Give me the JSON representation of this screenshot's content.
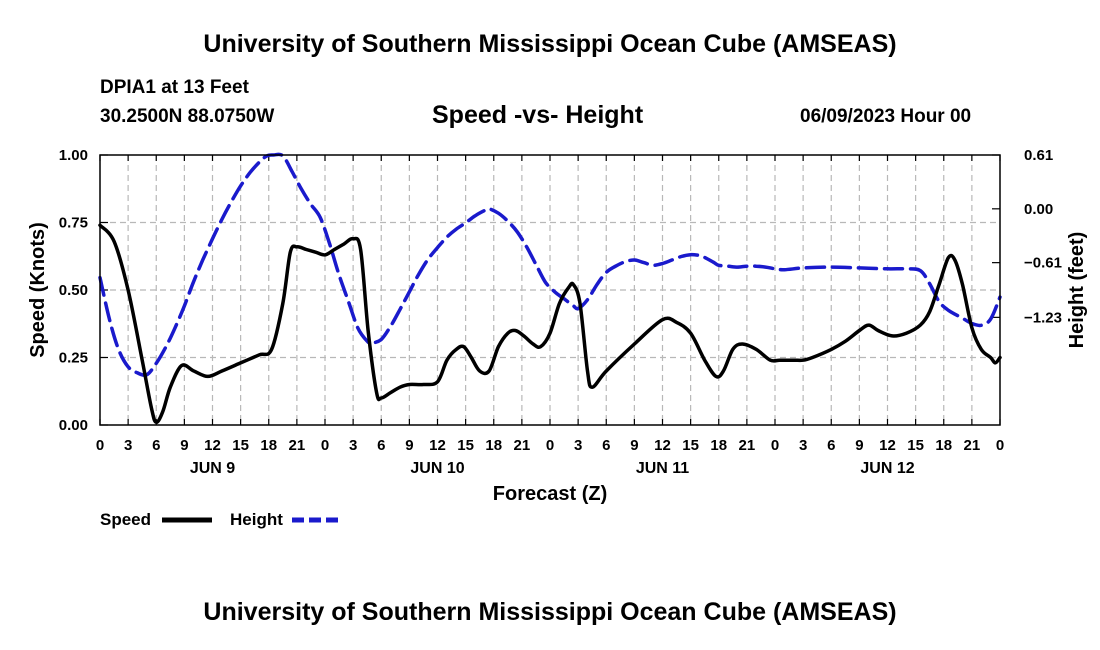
{
  "header": {
    "title": "University of Southern Mississippi Ocean Cube (AMSEAS)",
    "station": "DPIA1 at 13 Feet",
    "coordinates": "30.2500N  88.0750W",
    "subtitle": "Speed -vs- Height",
    "datetime": "06/09/2023 Hour 00"
  },
  "footer": {
    "title": "University of Southern Mississippi Ocean Cube (AMSEAS)"
  },
  "chart_data": {
    "type": "line",
    "title": "Speed -vs- Height",
    "xlabel": "Forecast (Z)",
    "ylabel_left": "Speed (Knots)",
    "ylabel_right": "Height (feet)",
    "x_range_hours": [
      0,
      96
    ],
    "ylim_left": [
      0,
      1.0
    ],
    "ylim_right": [
      -2.45,
      0.61
    ],
    "left_ticks": [
      "0.00",
      "0.25",
      "0.50",
      "0.75",
      "1.00"
    ],
    "left_tick_values": [
      0,
      0.25,
      0.5,
      0.75,
      1.0
    ],
    "right_ticks": [
      "0.61",
      "0.00",
      "−0.61",
      "−1.23"
    ],
    "right_tick_values": [
      0.61,
      0.0,
      -0.61,
      -1.23
    ],
    "x_tick_hours": [
      0,
      3,
      6,
      9,
      12,
      15,
      18,
      21,
      24,
      27,
      30,
      33,
      36,
      39,
      42,
      45,
      48,
      51,
      54,
      57,
      60,
      63,
      66,
      69,
      72,
      75,
      78,
      81,
      84,
      87,
      90,
      93,
      96
    ],
    "x_tick_labels": [
      "0",
      "3",
      "6",
      "9",
      "12",
      "15",
      "18",
      "21",
      "0",
      "3",
      "6",
      "9",
      "12",
      "15",
      "18",
      "21",
      "0",
      "3",
      "6",
      "9",
      "12",
      "15",
      "18",
      "21",
      "0",
      "3",
      "6",
      "9",
      "12",
      "15",
      "18",
      "21",
      "0"
    ],
    "day_labels": [
      {
        "label": "JUN 9",
        "hour": 12
      },
      {
        "label": "JUN 10",
        "hour": 36
      },
      {
        "label": "JUN 11",
        "hour": 60
      },
      {
        "label": "JUN 12",
        "hour": 84
      }
    ],
    "grid": true,
    "series": [
      {
        "name": "Speed",
        "axis": "left",
        "color": "#000000",
        "style": "solid",
        "points": [
          [
            0,
            0.74
          ],
          [
            1.5,
            0.68
          ],
          [
            3,
            0.5
          ],
          [
            4.5,
            0.24
          ],
          [
            5.5,
            0.06
          ],
          [
            6,
            0.01
          ],
          [
            6.7,
            0.05
          ],
          [
            7.5,
            0.14
          ],
          [
            8.7,
            0.22
          ],
          [
            10,
            0.2
          ],
          [
            11.5,
            0.18
          ],
          [
            13,
            0.2
          ],
          [
            15,
            0.23
          ],
          [
            17,
            0.26
          ],
          [
            18.3,
            0.28
          ],
          [
            19.5,
            0.45
          ],
          [
            20.3,
            0.64
          ],
          [
            21,
            0.66
          ],
          [
            22,
            0.65
          ],
          [
            23,
            0.64
          ],
          [
            24,
            0.63
          ],
          [
            25,
            0.65
          ],
          [
            26,
            0.67
          ],
          [
            27,
            0.69
          ],
          [
            27.8,
            0.65
          ],
          [
            28.6,
            0.35
          ],
          [
            29.5,
            0.12
          ],
          [
            30,
            0.1
          ],
          [
            31,
            0.12
          ],
          [
            32,
            0.14
          ],
          [
            33,
            0.15
          ],
          [
            34.5,
            0.15
          ],
          [
            36,
            0.16
          ],
          [
            37,
            0.24
          ],
          [
            38,
            0.28
          ],
          [
            38.8,
            0.29
          ],
          [
            39.6,
            0.25
          ],
          [
            40.5,
            0.2
          ],
          [
            41.5,
            0.2
          ],
          [
            42.5,
            0.29
          ],
          [
            43.5,
            0.34
          ],
          [
            44.3,
            0.35
          ],
          [
            45.2,
            0.33
          ],
          [
            46.2,
            0.3
          ],
          [
            47,
            0.29
          ],
          [
            48,
            0.34
          ],
          [
            49,
            0.45
          ],
          [
            50,
            0.51
          ],
          [
            50.5,
            0.52
          ],
          [
            51.2,
            0.45
          ],
          [
            52,
            0.2
          ],
          [
            52.5,
            0.14
          ],
          [
            54,
            0.2
          ],
          [
            57,
            0.3
          ],
          [
            60,
            0.39
          ],
          [
            61.5,
            0.38
          ],
          [
            63,
            0.34
          ],
          [
            64.5,
            0.24
          ],
          [
            65.7,
            0.18
          ],
          [
            66.5,
            0.2
          ],
          [
            67.5,
            0.28
          ],
          [
            68.5,
            0.3
          ],
          [
            70,
            0.28
          ],
          [
            71.5,
            0.24
          ],
          [
            72.5,
            0.24
          ],
          [
            74,
            0.24
          ],
          [
            75,
            0.24
          ],
          [
            76,
            0.25
          ],
          [
            78,
            0.28
          ],
          [
            79.5,
            0.31
          ],
          [
            81,
            0.35
          ],
          [
            82,
            0.37
          ],
          [
            83,
            0.35
          ],
          [
            84.5,
            0.33
          ],
          [
            86,
            0.34
          ],
          [
            87.5,
            0.37
          ],
          [
            88.5,
            0.42
          ],
          [
            89.5,
            0.52
          ],
          [
            90.5,
            0.62
          ],
          [
            91.2,
            0.61
          ],
          [
            92,
            0.52
          ],
          [
            93,
            0.36
          ],
          [
            94,
            0.28
          ],
          [
            95,
            0.25
          ],
          [
            95.5,
            0.23
          ],
          [
            96,
            0.25
          ]
        ]
      },
      {
        "name": "Height",
        "axis": "right",
        "color": "#1a1acc",
        "style": "dashed",
        "points": [
          [
            0,
            -0.78
          ],
          [
            1,
            -1.25
          ],
          [
            2,
            -1.6
          ],
          [
            3,
            -1.79
          ],
          [
            4,
            -1.86
          ],
          [
            5,
            -1.88
          ],
          [
            6,
            -1.75
          ],
          [
            7,
            -1.57
          ],
          [
            8,
            -1.35
          ],
          [
            9,
            -1.1
          ],
          [
            10,
            -0.82
          ],
          [
            11,
            -0.57
          ],
          [
            12,
            -0.34
          ],
          [
            13,
            -0.12
          ],
          [
            14,
            0.08
          ],
          [
            15,
            0.26
          ],
          [
            16,
            0.41
          ],
          [
            17,
            0.53
          ],
          [
            17.8,
            0.6
          ],
          [
            18.5,
            0.63
          ],
          [
            19.5,
            0.6
          ],
          [
            20.5,
            0.42
          ],
          [
            21.5,
            0.22
          ],
          [
            22.5,
            0.05
          ],
          [
            23.5,
            -0.1
          ],
          [
            24.5,
            -0.4
          ],
          [
            25.5,
            -0.75
          ],
          [
            26.5,
            -1.05
          ],
          [
            27.5,
            -1.35
          ],
          [
            28.5,
            -1.5
          ],
          [
            29,
            -1.52
          ],
          [
            30,
            -1.48
          ],
          [
            31,
            -1.33
          ],
          [
            32,
            -1.14
          ],
          [
            33,
            -0.94
          ],
          [
            34,
            -0.74
          ],
          [
            35,
            -0.57
          ],
          [
            36,
            -0.44
          ],
          [
            37,
            -0.32
          ],
          [
            38,
            -0.23
          ],
          [
            39,
            -0.16
          ],
          [
            40,
            -0.08
          ],
          [
            41,
            -0.02
          ],
          [
            41.5,
            0.0
          ],
          [
            42.5,
            -0.05
          ],
          [
            43.5,
            -0.14
          ],
          [
            44.5,
            -0.26
          ],
          [
            45.5,
            -0.43
          ],
          [
            46.5,
            -0.63
          ],
          [
            47.5,
            -0.83
          ],
          [
            48.5,
            -0.94
          ],
          [
            49.5,
            -1.02
          ],
          [
            50.5,
            -1.1
          ],
          [
            51,
            -1.13
          ],
          [
            52,
            -1.03
          ],
          [
            53,
            -0.86
          ],
          [
            54,
            -0.72
          ],
          [
            55,
            -0.65
          ],
          [
            56,
            -0.6
          ],
          [
            57,
            -0.58
          ],
          [
            58,
            -0.61
          ],
          [
            59,
            -0.64
          ],
          [
            60,
            -0.62
          ],
          [
            61,
            -0.58
          ],
          [
            62,
            -0.54
          ],
          [
            63,
            -0.52
          ],
          [
            64,
            -0.53
          ],
          [
            64.5,
            -0.55
          ],
          [
            65.5,
            -0.61
          ],
          [
            66,
            -0.64
          ],
          [
            67,
            -0.65
          ],
          [
            68,
            -0.66
          ],
          [
            69,
            -0.65
          ],
          [
            70,
            -0.65
          ],
          [
            71,
            -0.66
          ],
          [
            72,
            -0.68
          ],
          [
            73,
            -0.69
          ],
          [
            75,
            -0.67
          ],
          [
            78,
            -0.66
          ],
          [
            81,
            -0.67
          ],
          [
            84,
            -0.68
          ],
          [
            86,
            -0.68
          ],
          [
            87.5,
            -0.7
          ],
          [
            88.5,
            -0.85
          ],
          [
            89.5,
            -1.05
          ],
          [
            90.5,
            -1.15
          ],
          [
            92,
            -1.24
          ],
          [
            93,
            -1.3
          ],
          [
            94,
            -1.32
          ],
          [
            95,
            -1.25
          ],
          [
            96,
            -1.0
          ]
        ]
      }
    ],
    "legend": {
      "position": "bottom-left",
      "entries": [
        "Speed",
        "Height"
      ]
    }
  }
}
